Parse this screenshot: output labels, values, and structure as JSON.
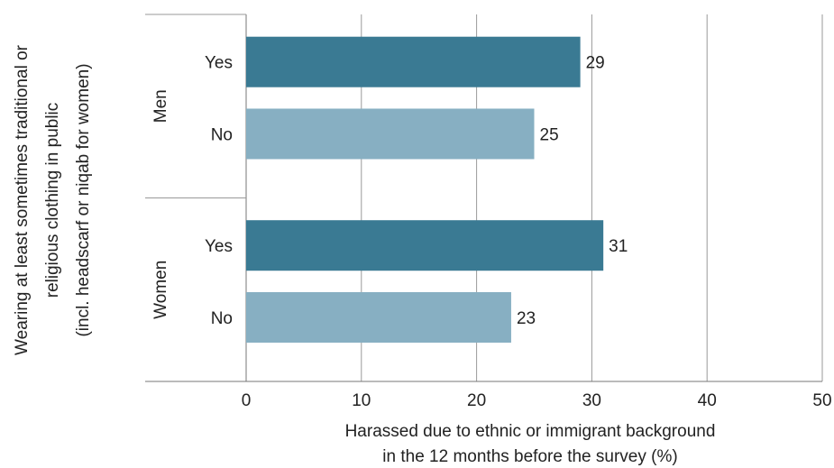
{
  "chart_data": {
    "type": "bar",
    "orientation": "horizontal",
    "xlabel_line1": "Harassed due to ethnic or immigrant background",
    "xlabel_line2": "in the 12 months before the survey (%)",
    "ylabel_line1": "Wearing at least sometimes traditional or",
    "ylabel_line2": "religious clothing in public",
    "ylabel_line3": "(incl. headscarf or niqab for women)",
    "xlim": [
      0,
      50
    ],
    "xticks": [
      0,
      10,
      20,
      30,
      40,
      50
    ],
    "grid": true,
    "groups": [
      {
        "name": "Men",
        "bars": [
          {
            "label": "Yes",
            "value": 29
          },
          {
            "label": "No",
            "value": 25
          }
        ]
      },
      {
        "name": "Women",
        "bars": [
          {
            "label": "Yes",
            "value": 31
          },
          {
            "label": "No",
            "value": 23
          }
        ]
      }
    ],
    "colors": {
      "Yes": "#3a7a93",
      "No": "#87afc2",
      "grid": "#9a9a9a"
    }
  }
}
